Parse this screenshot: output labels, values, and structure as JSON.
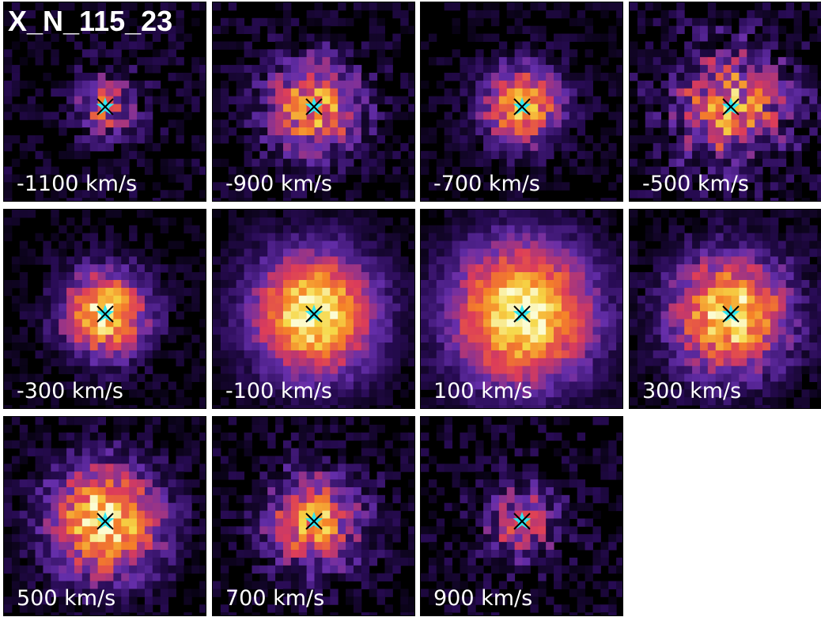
{
  "title": "X_N_115_23",
  "panels": [
    {
      "label": "-1100 km/s"
    },
    {
      "label": "-900 km/s"
    },
    {
      "label": "-700 km/s"
    },
    {
      "label": "-500 km/s"
    },
    {
      "label": "-300 km/s"
    },
    {
      "label": "-100 km/s"
    },
    {
      "label": "100 km/s"
    },
    {
      "label": "300 km/s"
    },
    {
      "label": "500 km/s"
    },
    {
      "label": "700 km/s"
    },
    {
      "label": "900 km/s"
    }
  ]
}
